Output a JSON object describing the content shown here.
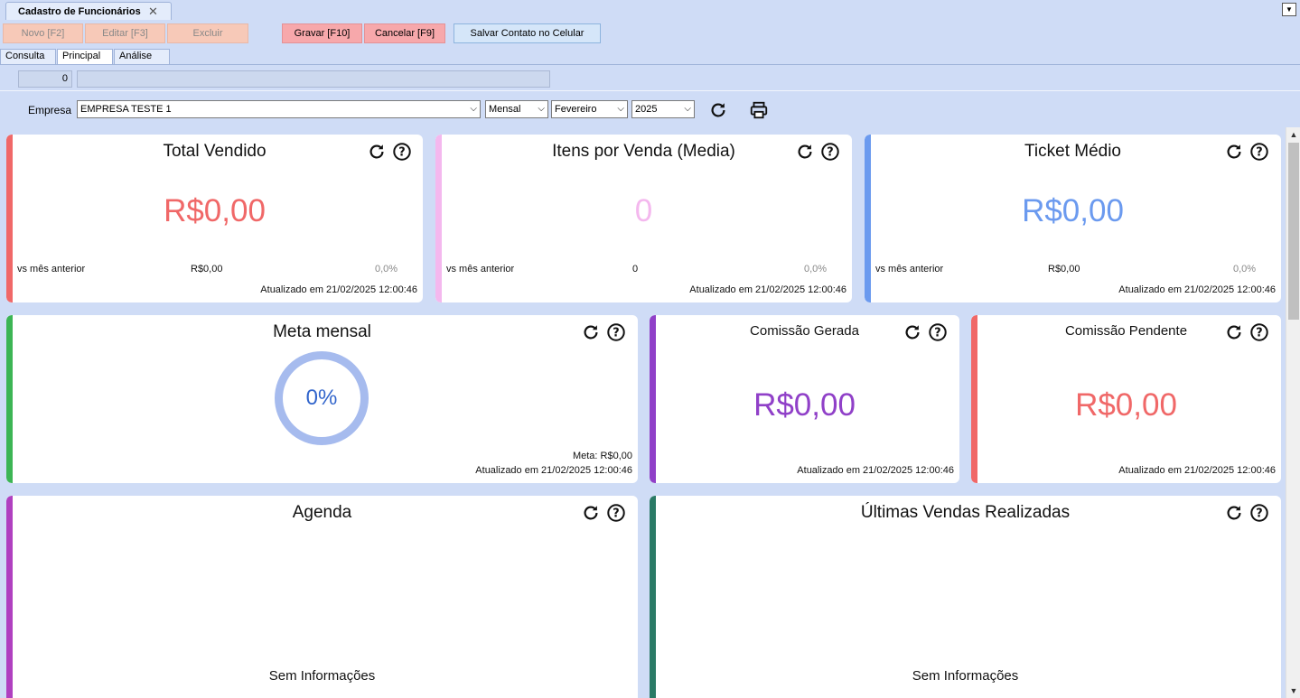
{
  "window": {
    "tab_title": "Cadastro de Funcionários",
    "close_glyph": "✕",
    "menu_glyph": "▼"
  },
  "toolbar": {
    "novo": "Novo [F2]",
    "editar": "Editar [F3]",
    "excluir": "Excluir",
    "gravar": "Gravar [F10]",
    "cancelar": "Cancelar [F9]",
    "salvar_contato": "Salvar Contato no Celular"
  },
  "tabs": [
    "Consulta",
    "Principal",
    "Análise"
  ],
  "record_count": "0",
  "filters": {
    "empresa_label": "Empresa",
    "empresa_value": "EMPRESA TESTE 1",
    "periodo": "Mensal",
    "mes": "Fevereiro",
    "ano": "2025"
  },
  "cards": {
    "total_vendido": {
      "title": "Total Vendido",
      "value": "R$0,00",
      "compare_label": "vs mês anterior",
      "compare_value": "R$0,00",
      "pct": "0,0%",
      "updated": "Atualizado em 21/02/2025 12:00:46",
      "color": "#f06868"
    },
    "itens_venda": {
      "title": "Itens por Venda (Media)",
      "value": "0",
      "compare_label": "vs mês anterior",
      "compare_value": "0",
      "pct": "0,0%",
      "updated": "Atualizado em 21/02/2025 12:00:46",
      "color": "#f4b8ee"
    },
    "ticket_medio": {
      "title": "Ticket Médio",
      "value": "R$0,00",
      "compare_label": "vs mês anterior",
      "compare_value": "R$0,00",
      "pct": "0,0%",
      "updated": "Atualizado em 21/02/2025 12:00:46",
      "color": "#6b9aef"
    },
    "meta_mensal": {
      "title": "Meta mensal",
      "progress": "0%",
      "meta": "Meta: R$0,00",
      "updated": "Atualizado em 21/02/2025 12:00:46",
      "color": "#3cb554",
      "ring_color": "#a6bbee"
    },
    "comissao_gerada": {
      "title": "Comissão Gerada",
      "value": "R$0,00",
      "updated": "Atualizado em 21/02/2025 12:00:46",
      "color": "#9040c8"
    },
    "comissao_pendente": {
      "title": "Comissão Pendente",
      "value": "R$0,00",
      "updated": "Atualizado em 21/02/2025 12:00:46",
      "color": "#f06868"
    },
    "agenda": {
      "title": "Agenda",
      "empty": "Sem Informações",
      "color": "#b040c0"
    },
    "ultimas_vendas": {
      "title": "Últimas Vendas Realizadas",
      "empty": "Sem Informações",
      "color": "#2a7a66"
    }
  }
}
